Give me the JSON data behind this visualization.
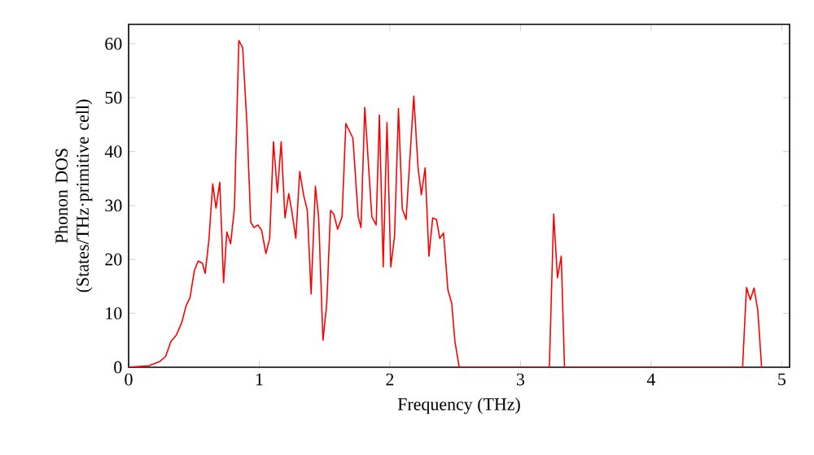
{
  "chart_data": {
    "type": "line",
    "xlabel": "Frequency (THz)",
    "ylabel": "Phonon DOS (States/THz·primitive cell)",
    "xlim": [
      0,
      5.06
    ],
    "ylim": [
      0,
      63.6
    ],
    "xticks": [
      0,
      1,
      2,
      3,
      4,
      5
    ],
    "yticks": [
      0,
      10,
      20,
      30,
      40,
      50,
      60
    ],
    "x": [
      0.0,
      0.158,
      0.241,
      0.283,
      0.324,
      0.366,
      0.407,
      0.44,
      0.47,
      0.503,
      0.532,
      0.565,
      0.586,
      0.615,
      0.644,
      0.669,
      0.698,
      0.727,
      0.752,
      0.781,
      0.81,
      0.844,
      0.873,
      0.906,
      0.935,
      0.96,
      0.989,
      1.018,
      1.051,
      1.08,
      1.109,
      1.139,
      1.168,
      1.197,
      1.226,
      1.251,
      1.28,
      1.31,
      1.339,
      1.368,
      1.397,
      1.43,
      1.455,
      1.488,
      1.517,
      1.546,
      1.571,
      1.6,
      1.634,
      1.663,
      1.717,
      1.758,
      1.779,
      1.808,
      1.862,
      1.895,
      1.92,
      1.949,
      1.978,
      2.007,
      2.036,
      2.066,
      2.095,
      2.124,
      2.183,
      2.216,
      2.241,
      2.27,
      2.299,
      2.328,
      2.357,
      2.382,
      2.411,
      2.444,
      2.474,
      2.498,
      2.531,
      3.221,
      3.254,
      3.283,
      3.312,
      3.337,
      4.7,
      4.73,
      4.759,
      4.788,
      4.817,
      4.846
    ],
    "series": [
      {
        "color": "#ff0000",
        "values": [
          0,
          0.3,
          1.1,
          2.0,
          4.8,
          6.0,
          8.3,
          11.4,
          12.9,
          17.9,
          19.7,
          19.3,
          17.4,
          23.7,
          34.0,
          29.5,
          34.3,
          15.7,
          25.1,
          22.9,
          29.5,
          60.6,
          59.3,
          45.0,
          26.9,
          25.9,
          26.4,
          25.4,
          21.1,
          23.9,
          41.8,
          32.4,
          41.8,
          27.7,
          32.2,
          28.7,
          23.9,
          36.3,
          32.0,
          29.1,
          13.6,
          33.6,
          27.7,
          5.0,
          11.8,
          29.1,
          28.4,
          25.6,
          27.9,
          45.2,
          42.5,
          27.9,
          25.9,
          48.2,
          27.9,
          26.4,
          46.8,
          18.6,
          45.4,
          18.6,
          24.3,
          48.0,
          29.4,
          27.4,
          50.3,
          37.0,
          32.0,
          37.0,
          20.6,
          27.7,
          27.4,
          23.9,
          24.9,
          14.4,
          11.8,
          4.8,
          0,
          0,
          28.4,
          16.6,
          20.6,
          0,
          0,
          14.8,
          12.5,
          14.7,
          10.5,
          0
        ],
        "line_style": "solid"
      }
    ]
  }
}
